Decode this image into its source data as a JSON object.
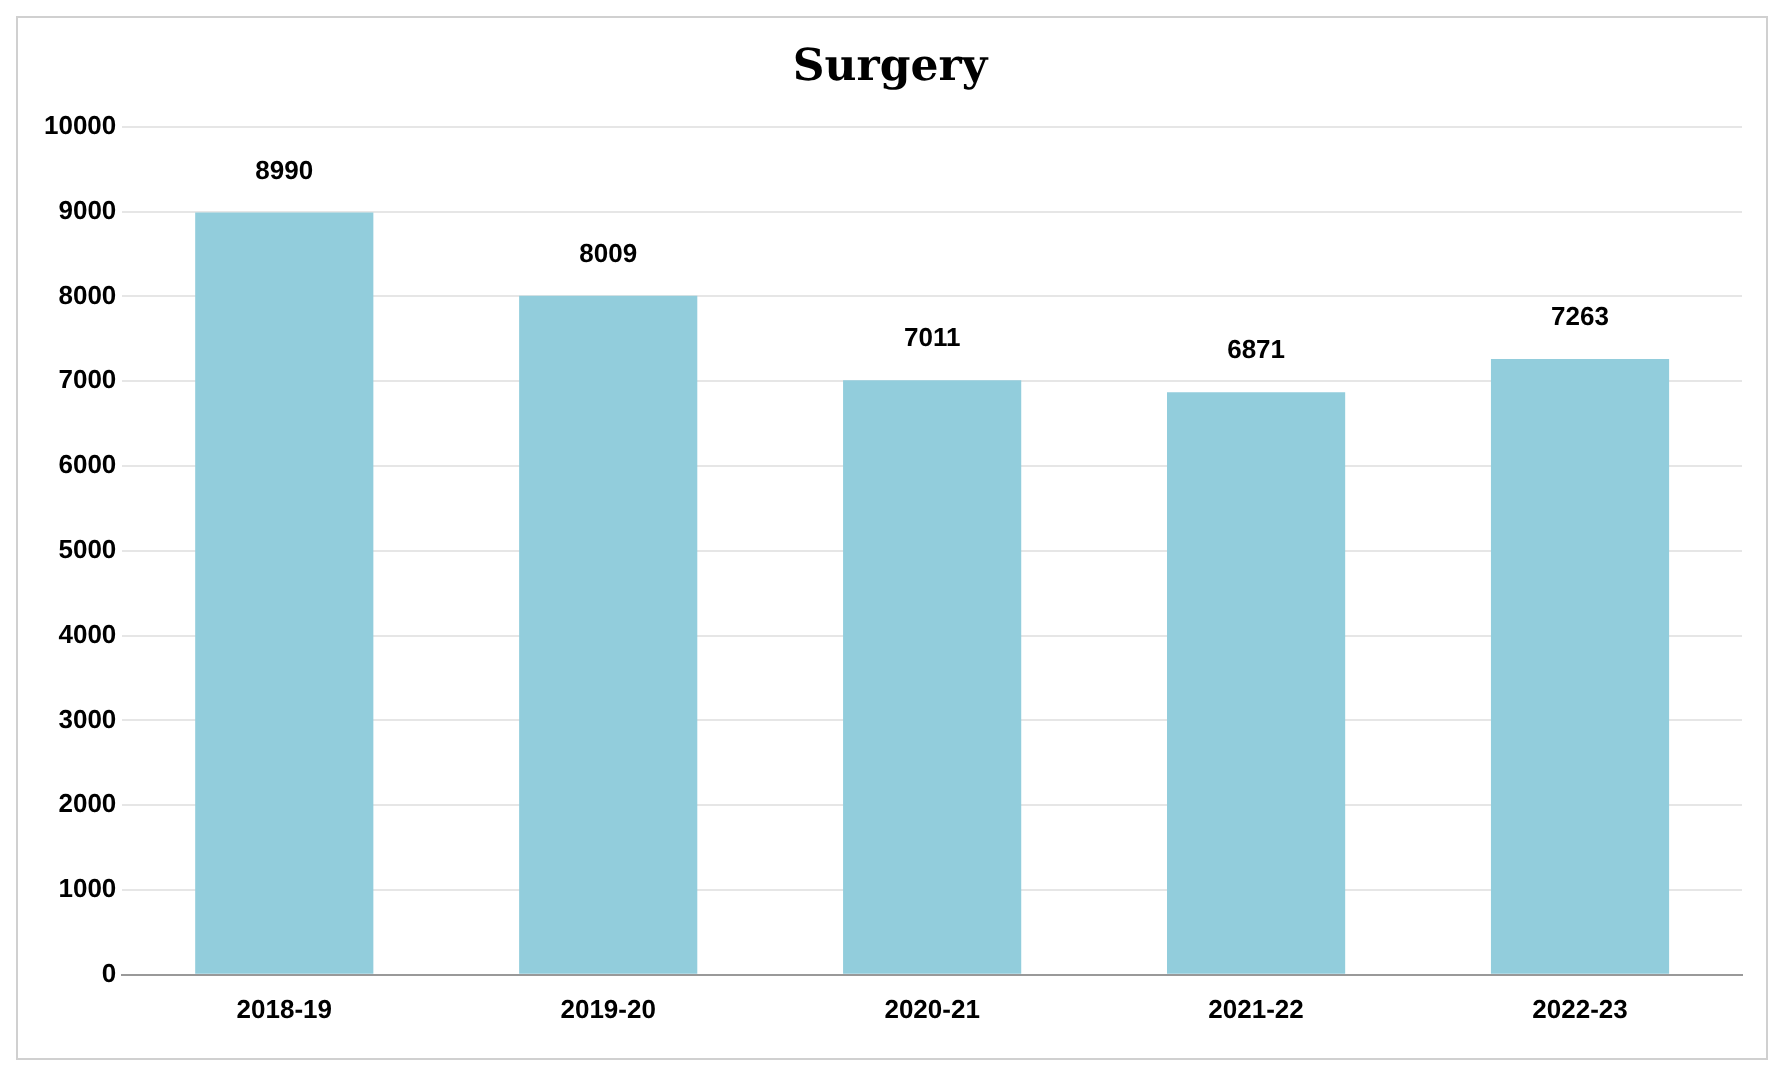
{
  "chart_data": {
    "type": "bar",
    "title": "Surgery",
    "categories": [
      "2018-19",
      "2019-20",
      "2020-21",
      "2021-22",
      "2022-23"
    ],
    "values": [
      8990,
      8009,
      7011,
      6871,
      7263
    ],
    "color": "#92cddc",
    "ylim": [
      0,
      10000
    ],
    "yticks": [
      0,
      1000,
      2000,
      3000,
      4000,
      5000,
      6000,
      7000,
      8000,
      9000,
      10000
    ],
    "grid": "y",
    "data_labels": true
  }
}
